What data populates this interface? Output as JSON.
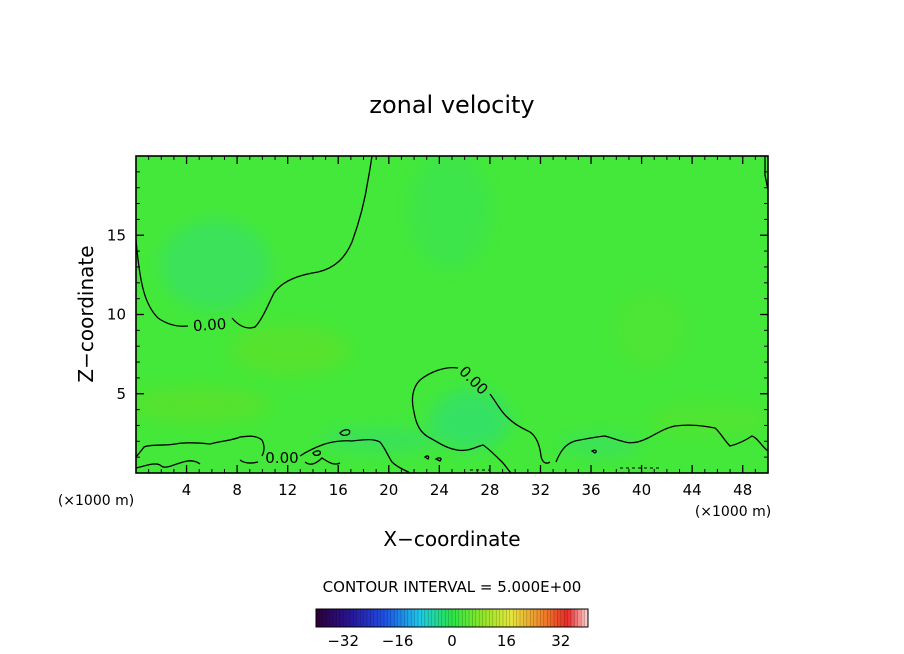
{
  "chart_data": {
    "type": "heatmap",
    "title": "zonal velocity",
    "xlabel": "X−coordinate",
    "ylabel": "Z−coordinate",
    "x_unit": "(×1000 m)",
    "xlim": [
      0,
      50
    ],
    "ylim": [
      0,
      20
    ],
    "x_ticks": [
      4,
      8,
      12,
      16,
      20,
      24,
      28,
      32,
      36,
      40,
      44,
      48
    ],
    "y_ticks": [
      5,
      10,
      15
    ],
    "contour_interval_label": "CONTOUR INTERVAL = 5.000E+00",
    "contour_labels": [
      "0.00",
      "0.00",
      "0.00"
    ],
    "colorbar": {
      "range": [
        -40,
        40
      ],
      "ticks": [
        -32,
        -16,
        0,
        16,
        32
      ]
    },
    "dominant_value_range": [
      -5,
      5
    ],
    "colors": {
      "field": "#3fe83c",
      "contour": "#000000"
    }
  }
}
